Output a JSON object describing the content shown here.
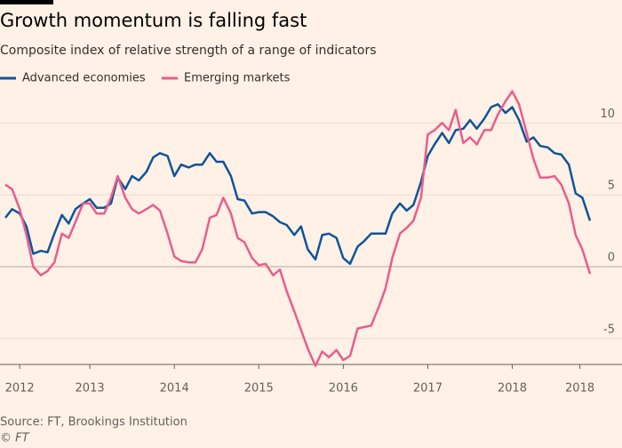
{
  "chart_data": {
    "type": "line",
    "title": "Growth momentum is falling fast",
    "subtitle": "Composite index of relative strength of a range of indicators",
    "source": "Source: FT, Brookings Institution",
    "credit": "© FT",
    "x": [
      2012,
      2012.08,
      2012.17,
      2012.25,
      2012.33,
      2012.42,
      2012.5,
      2012.58,
      2012.67,
      2012.75,
      2012.83,
      2012.92,
      2013,
      2013.08,
      2013.17,
      2013.25,
      2013.33,
      2013.42,
      2013.5,
      2013.58,
      2013.67,
      2013.75,
      2013.83,
      2013.92,
      2014,
      2014.08,
      2014.17,
      2014.25,
      2014.33,
      2014.42,
      2014.5,
      2014.58,
      2014.67,
      2014.75,
      2014.83,
      2014.92,
      2015,
      2015.08,
      2015.17,
      2015.25,
      2015.33,
      2015.42,
      2015.5,
      2015.58,
      2015.67,
      2015.75,
      2015.83,
      2015.92,
      2016,
      2016.08,
      2016.17,
      2016.25,
      2016.33,
      2016.42,
      2016.5,
      2016.58,
      2016.67,
      2016.75,
      2016.83,
      2016.92,
      2017,
      2017.08,
      2017.17,
      2017.25,
      2017.33,
      2017.42,
      2017.5,
      2017.58,
      2017.67,
      2017.75,
      2017.83,
      2017.92,
      2018,
      2018.08,
      2018.17,
      2018.25,
      2018.33,
      2018.42,
      2018.5,
      2018.58,
      2018.67,
      2018.75,
      2018.83,
      2018.92
    ],
    "series": [
      {
        "name": "Advanced economies",
        "color": "#0f5499",
        "values": [
          3.4,
          4.0,
          3.7,
          2.8,
          0.9,
          1.1,
          1.0,
          2.3,
          3.6,
          3.0,
          4.0,
          4.4,
          4.7,
          4.1,
          4.1,
          4.4,
          6.2,
          5.4,
          6.3,
          6.0,
          6.6,
          7.6,
          7.9,
          7.7,
          6.3,
          7.1,
          6.9,
          7.1,
          7.1,
          7.9,
          7.3,
          7.3,
          6.3,
          4.7,
          4.6,
          3.7,
          3.8,
          3.8,
          3.5,
          3.1,
          2.9,
          2.2,
          2.8,
          1.2,
          0.5,
          2.2,
          2.3,
          2.0,
          0.6,
          0.2,
          1.4,
          1.8,
          2.3,
          2.3,
          2.3,
          3.7,
          4.4,
          3.9,
          4.3,
          5.9,
          7.7,
          8.5,
          9.3,
          8.6,
          9.5,
          9.6,
          10.2,
          9.6,
          10.3,
          11.1,
          11.3,
          10.7,
          11.1,
          10.2,
          8.7,
          9.0,
          8.4,
          8.3,
          7.9,
          7.8,
          7.1,
          5.1,
          4.8,
          3.2
        ]
      },
      {
        "name": "Emerging markets",
        "color": "#e95d8c",
        "values": [
          5.7,
          5.4,
          4.0,
          2.2,
          0.0,
          -0.6,
          -0.3,
          0.3,
          2.3,
          2.0,
          3.1,
          4.4,
          4.4,
          3.7,
          3.7,
          4.8,
          6.3,
          4.8,
          4.0,
          3.7,
          4.0,
          4.3,
          3.9,
          2.3,
          0.7,
          0.4,
          0.3,
          0.3,
          1.2,
          3.4,
          3.6,
          4.8,
          3.7,
          2.0,
          1.7,
          0.6,
          0.1,
          0.2,
          -0.6,
          -0.2,
          -1.7,
          -3.1,
          -4.4,
          -5.7,
          -6.9,
          -5.9,
          -6.3,
          -5.8,
          -6.5,
          -6.2,
          -4.3,
          -4.2,
          -4.1,
          -2.8,
          -1.5,
          0.6,
          2.3,
          2.7,
          3.2,
          4.8,
          9.2,
          9.5,
          10.0,
          9.5,
          10.9,
          8.6,
          9.0,
          8.5,
          9.5,
          9.5,
          10.6,
          11.5,
          12.2,
          11.3,
          9.3,
          7.5,
          6.2,
          6.2,
          6.3,
          5.7,
          4.4,
          2.2,
          1.2,
          -0.5
        ]
      }
    ],
    "xlim": [
      2012,
      2018.92
    ],
    "xticks": [
      {
        "value": 2012.17,
        "label": "2012"
      },
      2013,
      2014,
      2015,
      2016,
      2017,
      2018,
      {
        "value": 2018.8,
        "label": "2018"
      }
    ],
    "ylim": [
      -6.8,
      12.8
    ],
    "yticks": [
      -5,
      0,
      5,
      10
    ],
    "grid": true
  }
}
